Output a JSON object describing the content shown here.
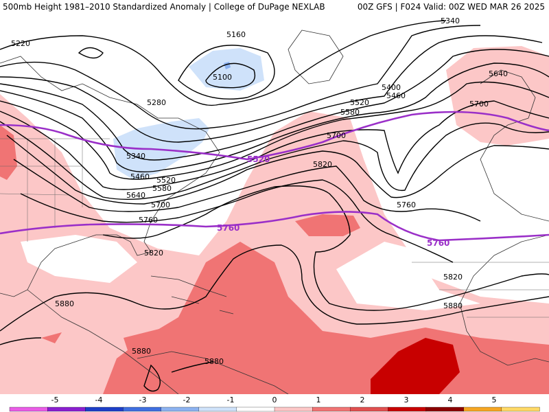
{
  "header": {
    "title_left": "500mb Height 1981–2010 Standardized Anomaly | College of DuPage NEXLAB",
    "title_right": "00Z GFS | F024 Valid: 00Z WED MAR 26 2025"
  },
  "map": {
    "contour_labels": [
      {
        "text": "5340"
      },
      {
        "text": "5220"
      },
      {
        "text": "5160"
      },
      {
        "text": "5100"
      },
      {
        "text": "5280"
      },
      {
        "text": "5400"
      },
      {
        "text": "5460"
      },
      {
        "text": "5520"
      },
      {
        "text": "5580"
      },
      {
        "text": "5640"
      },
      {
        "text": "5700"
      },
      {
        "text": "5700"
      },
      {
        "text": "5340"
      },
      {
        "text": "5460"
      },
      {
        "text": "5520"
      },
      {
        "text": "5580"
      },
      {
        "text": "5640"
      },
      {
        "text": "5700"
      },
      {
        "text": "5760"
      },
      {
        "text": "5820"
      },
      {
        "text": "5760"
      },
      {
        "text": "5820"
      },
      {
        "text": "5820"
      },
      {
        "text": "5880"
      },
      {
        "text": "5880"
      },
      {
        "text": "5880"
      },
      {
        "text": "5880"
      }
    ],
    "reference_labels": [
      {
        "text": "5520"
      },
      {
        "text": "5760"
      },
      {
        "text": "5760"
      }
    ]
  },
  "colorbar": {
    "ticks": [
      "-5",
      "-4",
      "-3",
      "-2",
      "-1",
      "0",
      "1",
      "2",
      "3",
      "4",
      "5"
    ],
    "colors": [
      "#e95ce6",
      "#8a1fd0",
      "#1d3fc8",
      "#3f6fe0",
      "#8cb2f0",
      "#cfe2fa",
      "#ffffff",
      "#fcc7c7",
      "#f07474",
      "#e05050",
      "#c80000",
      "#8a0000",
      "#f5a623",
      "#ffd966"
    ]
  }
}
